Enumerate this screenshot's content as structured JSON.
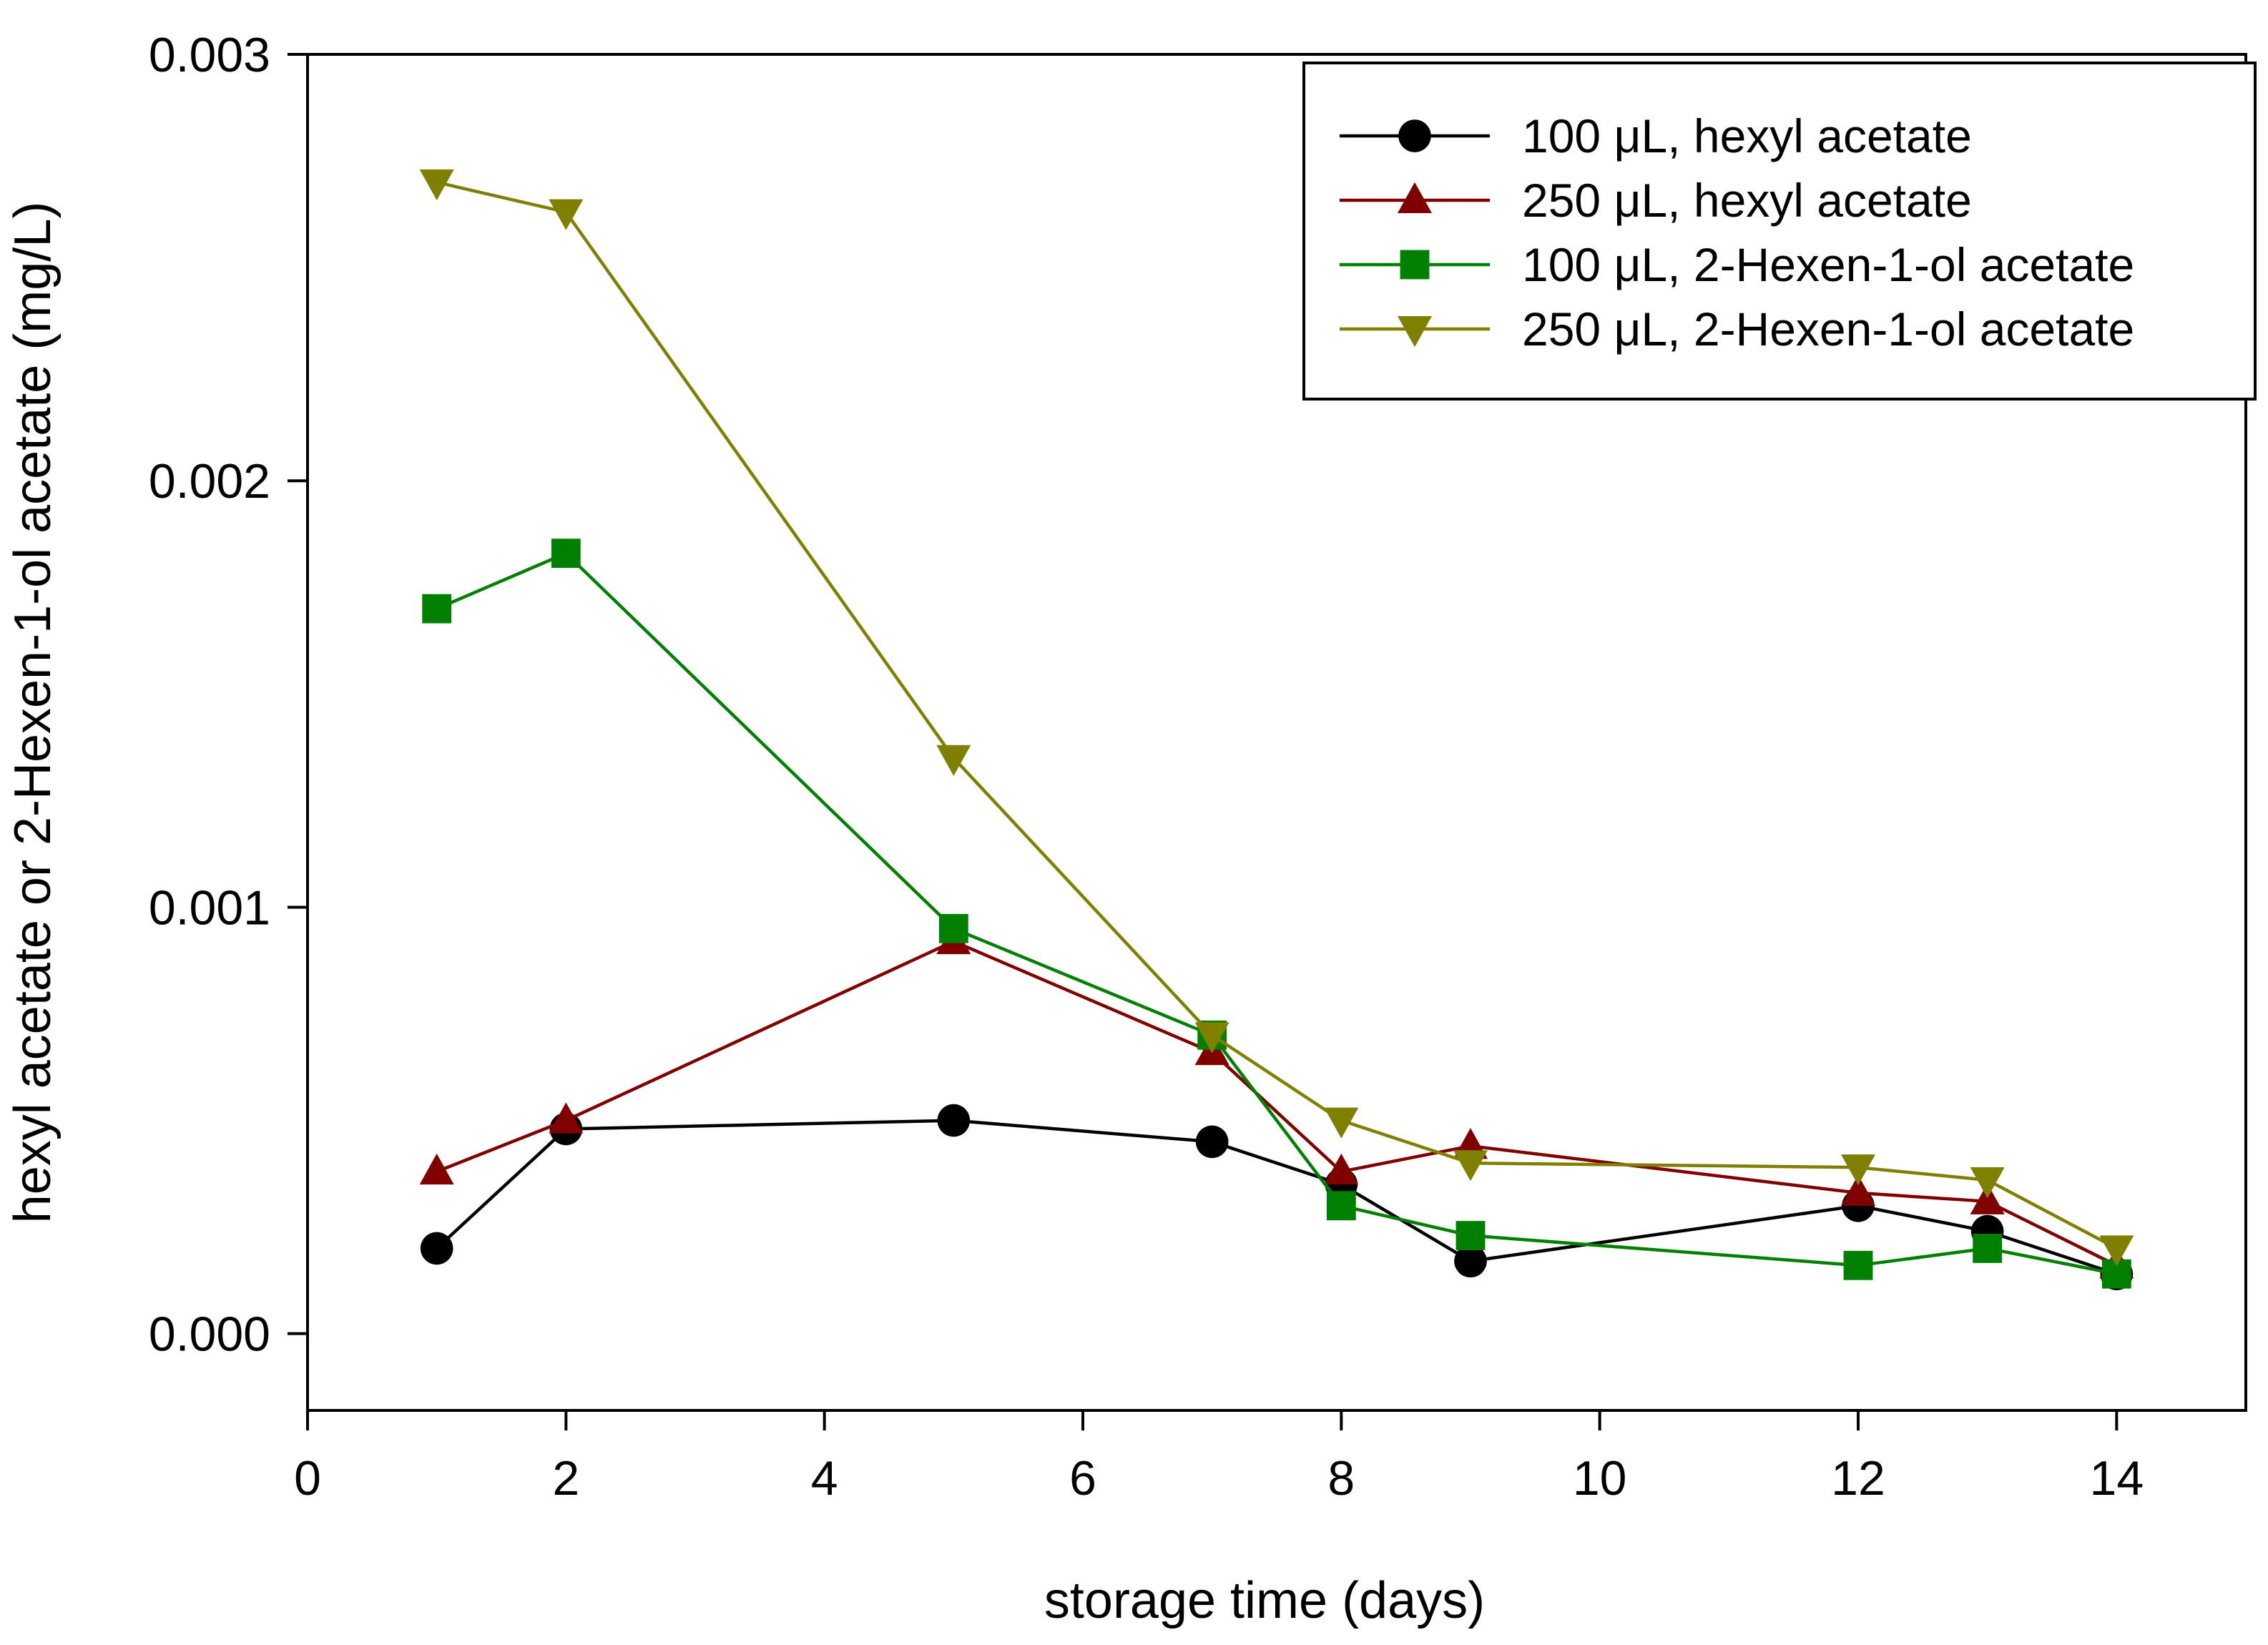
{
  "chart_data": {
    "type": "line",
    "title": "",
    "xlabel": "storage time (days)",
    "ylabel": "hexyl acetate or 2-Hexen-1-ol acetate (mg/L)",
    "xlim": [
      0,
      15
    ],
    "ylim": [
      -0.00018,
      0.003
    ],
    "xticks": [
      0,
      2,
      4,
      6,
      8,
      10,
      12,
      14
    ],
    "xtick_labels": [
      "0",
      "2",
      "4",
      "6",
      "8",
      "10",
      "12",
      "14"
    ],
    "yticks": [
      0,
      0.001,
      0.002,
      0.003
    ],
    "ytick_labels": [
      "0.000",
      "0.001",
      "0.002",
      "0.003"
    ],
    "grid": false,
    "legend_position": "top-right",
    "x": [
      1,
      2,
      5,
      7,
      8,
      9,
      12,
      13,
      14
    ],
    "series": [
      {
        "name": "100 μL, hexyl acetate",
        "color": "#000000",
        "marker": "circle",
        "values": [
          0.0002,
          0.00048,
          0.0005,
          0.00045,
          0.00035,
          0.00017,
          0.0003,
          0.00024,
          0.00014
        ]
      },
      {
        "name": "250 μL, hexyl acetate",
        "color": "#800000",
        "marker": "triangle-up",
        "values": [
          0.00038,
          0.0005,
          0.00092,
          0.00066,
          0.00038,
          0.00044,
          0.00033,
          0.00031,
          0.00016
        ]
      },
      {
        "name": "100 μL, 2-Hexen-1-ol acetate",
        "color": "#008000",
        "marker": "square",
        "values": [
          0.0017,
          0.00183,
          0.00095,
          0.0007,
          0.0003,
          0.00023,
          0.00016,
          0.0002,
          0.00014
        ]
      },
      {
        "name": "250 μL, 2-Hexen-1-ol acetate",
        "color": "#808000",
        "marker": "triangle-down",
        "values": [
          0.0027,
          0.00263,
          0.00135,
          0.0007,
          0.0005,
          0.0004,
          0.00039,
          0.00036,
          0.0002
        ]
      }
    ]
  }
}
